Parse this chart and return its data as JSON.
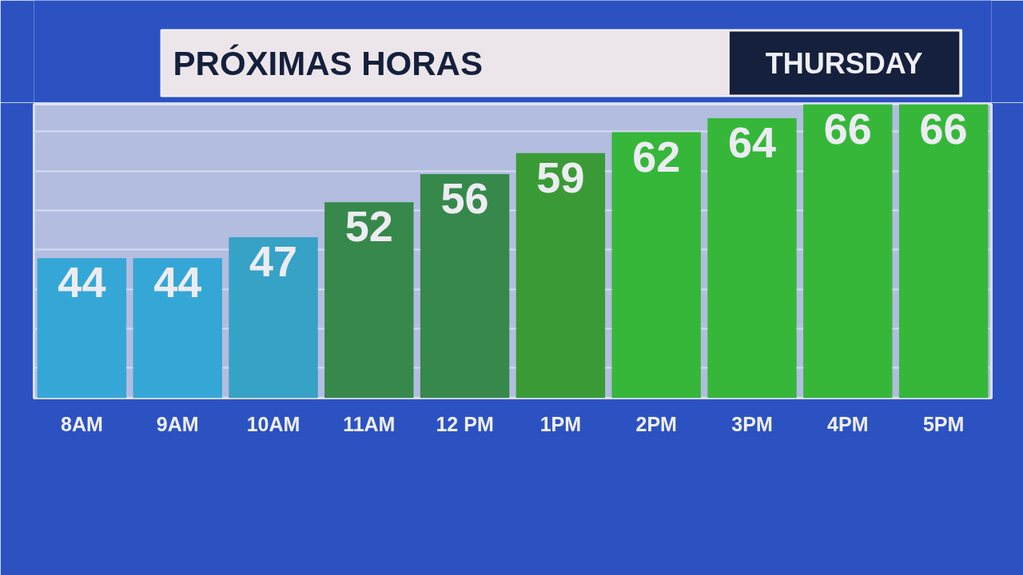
{
  "chart_data": {
    "type": "bar",
    "title": "PRÓXIMAS HORAS",
    "subtitle": "THURSDAY",
    "categories": [
      "8AM",
      "9AM",
      "10AM",
      "11AM",
      "12 PM",
      "1PM",
      "2PM",
      "3PM",
      "4PM",
      "5PM"
    ],
    "values": [
      44,
      44,
      47,
      52,
      56,
      59,
      62,
      64,
      66,
      66
    ],
    "colors": [
      "#35a7d7",
      "#35a7d7",
      "#36a2c6",
      "#36894a",
      "#36894a",
      "#3a9b36",
      "#36b73a",
      "#36b73a",
      "#36b73a",
      "#36b73a"
    ],
    "data_labels": true,
    "ylim": [
      24,
      66
    ],
    "yticks": [
      {
        "value": 28.3,
        "label": null
      },
      {
        "value": 33.9,
        "label": null
      },
      {
        "value": 39.5,
        "label": null
      },
      {
        "value": 45.2,
        "label": null
      },
      {
        "value": 50.8,
        "label": null
      },
      {
        "value": 56.4,
        "label": null
      },
      {
        "value": 62.1,
        "label": null
      }
    ],
    "grid": "y",
    "tick_labels": "x"
  }
}
